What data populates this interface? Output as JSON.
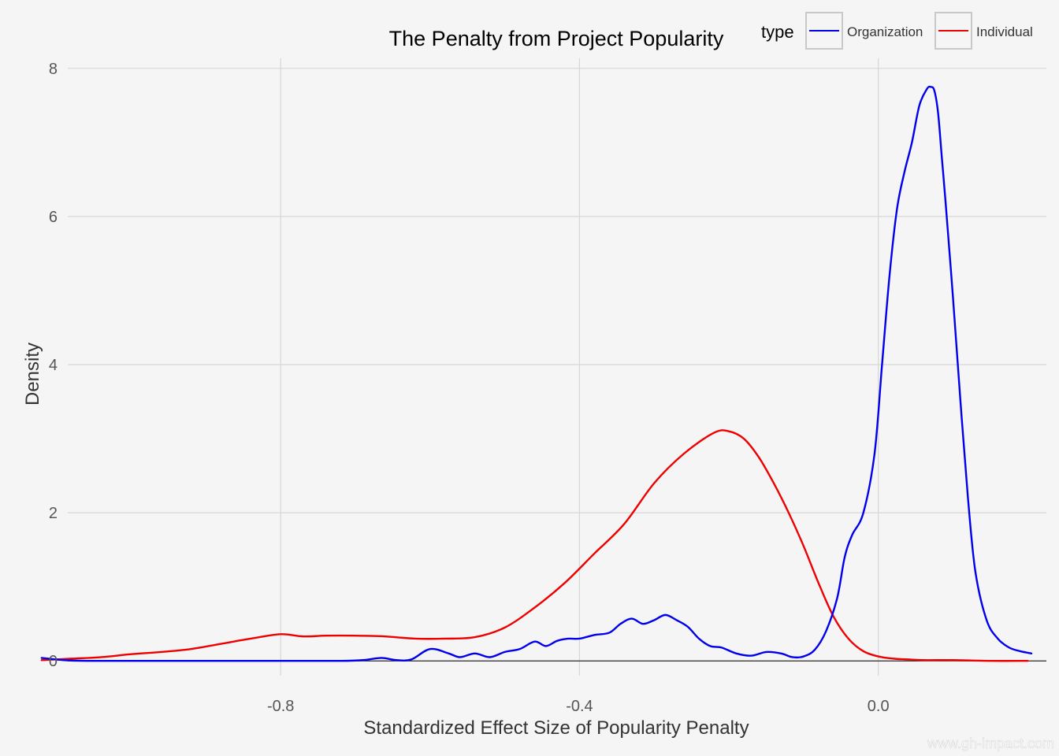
{
  "chart_data": {
    "type": "area",
    "title": "The Penalty from Project Popularity",
    "xlabel": "Standardized Effect Size of Popularity Penalty",
    "ylabel": "Density",
    "xlim": [
      -1.085,
      0.225
    ],
    "ylim": [
      -0.2,
      8.2
    ],
    "x_ticks": [
      -0.8,
      -0.4,
      0.0
    ],
    "x_tick_labels": [
      "-0.8",
      "-0.4",
      "0.0"
    ],
    "y_ticks": [
      0,
      2,
      4,
      6,
      8
    ],
    "y_tick_labels": [
      "0",
      "2",
      "4",
      "6",
      "8"
    ],
    "grid": true,
    "legend": {
      "title": "type",
      "position": "top-right"
    },
    "series": [
      {
        "name": "Organization",
        "color": "#0000ee",
        "x": [
          -1.12,
          -1.09,
          -1.06,
          -1.0,
          -0.9,
          -0.8,
          -0.72,
          -0.69,
          -0.665,
          -0.645,
          -0.625,
          -0.6,
          -0.575,
          -0.56,
          -0.54,
          -0.52,
          -0.5,
          -0.48,
          -0.46,
          -0.445,
          -0.43,
          -0.415,
          -0.4,
          -0.38,
          -0.36,
          -0.345,
          -0.33,
          -0.315,
          -0.3,
          -0.285,
          -0.27,
          -0.255,
          -0.24,
          -0.225,
          -0.21,
          -0.19,
          -0.17,
          -0.15,
          -0.13,
          -0.115,
          -0.1,
          -0.085,
          -0.07,
          -0.055,
          -0.045,
          -0.035,
          -0.02,
          -0.005,
          0.005,
          0.015,
          0.025,
          0.035,
          0.045,
          0.055,
          0.065,
          0.07,
          0.075,
          0.08,
          0.085,
          0.09,
          0.1,
          0.11,
          0.12,
          0.13,
          0.145,
          0.16,
          0.175,
          0.19,
          0.205
        ],
        "y": [
          0.04,
          0.01,
          0.0,
          0.0,
          0.0,
          0.0,
          0.0,
          0.01,
          0.04,
          0.01,
          0.02,
          0.16,
          0.1,
          0.05,
          0.1,
          0.05,
          0.12,
          0.16,
          0.26,
          0.2,
          0.27,
          0.3,
          0.3,
          0.35,
          0.38,
          0.5,
          0.57,
          0.5,
          0.55,
          0.62,
          0.55,
          0.46,
          0.3,
          0.2,
          0.18,
          0.1,
          0.07,
          0.12,
          0.1,
          0.05,
          0.06,
          0.15,
          0.4,
          0.85,
          1.4,
          1.7,
          2.0,
          2.8,
          4.0,
          5.2,
          6.1,
          6.6,
          7.0,
          7.5,
          7.72,
          7.75,
          7.7,
          7.4,
          6.8,
          6.2,
          4.9,
          3.5,
          2.2,
          1.2,
          0.55,
          0.3,
          0.18,
          0.13,
          0.1
        ]
      },
      {
        "name": "Individual",
        "color": "#ee0000",
        "x": [
          -1.12,
          -1.08,
          -1.04,
          -1.0,
          -0.96,
          -0.92,
          -0.88,
          -0.84,
          -0.8,
          -0.77,
          -0.74,
          -0.7,
          -0.66,
          -0.62,
          -0.58,
          -0.54,
          -0.5,
          -0.46,
          -0.42,
          -0.38,
          -0.34,
          -0.3,
          -0.26,
          -0.22,
          -0.2,
          -0.18,
          -0.16,
          -0.14,
          -0.12,
          -0.1,
          -0.08,
          -0.06,
          -0.04,
          -0.02,
          0.0,
          0.02,
          0.04,
          0.06,
          0.1,
          0.15,
          0.2
        ],
        "y": [
          0.01,
          0.03,
          0.05,
          0.09,
          0.12,
          0.16,
          0.23,
          0.3,
          0.36,
          0.33,
          0.34,
          0.34,
          0.33,
          0.3,
          0.3,
          0.32,
          0.45,
          0.72,
          1.05,
          1.45,
          1.85,
          2.4,
          2.8,
          3.08,
          3.1,
          3.0,
          2.75,
          2.4,
          2.0,
          1.55,
          1.05,
          0.6,
          0.3,
          0.13,
          0.06,
          0.03,
          0.02,
          0.01,
          0.01,
          0.0,
          0.0
        ]
      }
    ]
  },
  "watermark": "www.gh-impact.com"
}
